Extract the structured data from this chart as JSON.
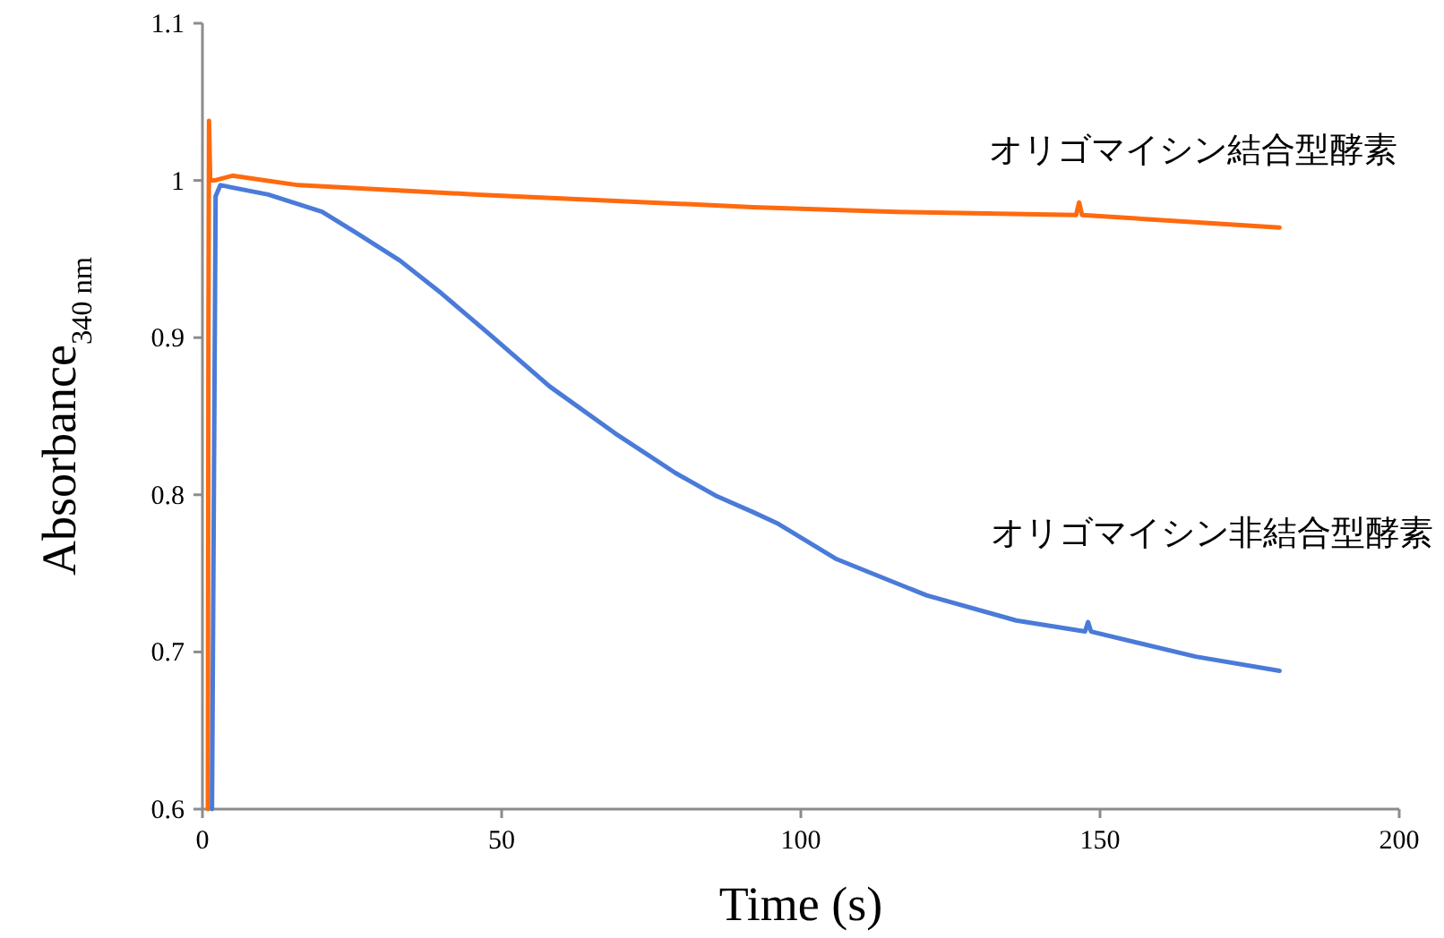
{
  "chart_data": {
    "type": "line",
    "xlabel": "Time (s)",
    "ylabel": "Absorbance$_{340 nm}$",
    "xlim": [
      0,
      200
    ],
    "ylim": [
      0.6,
      1.1
    ],
    "xticks": [
      0,
      50,
      100,
      150,
      200
    ],
    "yticks": [
      0.6,
      0.7,
      0.8,
      0.9,
      1,
      1.1
    ],
    "grid": false,
    "marker": "none",
    "line_style": "solid",
    "series": [
      {
        "name": "オリゴマイシン結合型酵素",
        "color": "#ff6a0e",
        "x": [
          0.9,
          1.0,
          1.1,
          1.3,
          2,
          5,
          16,
          46,
          92,
          116,
          146,
          146.5,
          147,
          180
        ],
        "values": [
          0.6,
          0.9,
          1.038,
          1.0,
          1.0,
          1.003,
          0.997,
          0.991,
          0.983,
          0.98,
          0.978,
          0.986,
          0.978,
          0.97
        ]
      },
      {
        "name": "オリゴマイシン非結合型酵素",
        "color": "#4a7bd8",
        "x": [
          1.6,
          2.2,
          3,
          11,
          20,
          26,
          33,
          40,
          48,
          58,
          69,
          79,
          86,
          92,
          96,
          106,
          121,
          136,
          147.5,
          148,
          148.5,
          166,
          180
        ],
        "values": [
          0.6,
          0.99,
          0.997,
          0.991,
          0.98,
          0.966,
          0.949,
          0.928,
          0.902,
          0.869,
          0.839,
          0.814,
          0.799,
          0.789,
          0.782,
          0.759,
          0.736,
          0.72,
          0.713,
          0.719,
          0.713,
          0.697,
          0.688
        ]
      }
    ]
  }
}
